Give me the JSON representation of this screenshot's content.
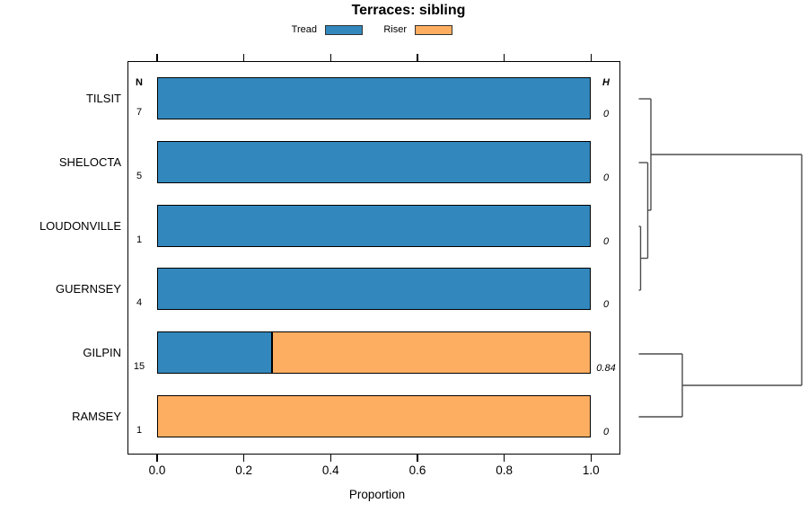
{
  "chart_data": {
    "type": "bar",
    "orientation": "horizontal",
    "stacked": true,
    "title": "Terraces: sibling",
    "xlabel": "Proportion",
    "xlim": [
      0,
      1.04
    ],
    "xticks": [
      0.0,
      0.2,
      0.4,
      0.6,
      0.8,
      1.0
    ],
    "xtick_labels": [
      "0.0",
      "0.2",
      "0.4",
      "0.6",
      "0.8",
      "1.0"
    ],
    "grid": false,
    "legend_position": "top-center",
    "categories": [
      "TILSIT",
      "SHELOCTA",
      "LOUDONVILLE",
      "GUERNSEY",
      "GILPIN",
      "RAMSEY"
    ],
    "series": [
      {
        "name": "Tread",
        "color": "#3288BD",
        "values": [
          1,
          1,
          1,
          1,
          0.267,
          0
        ]
      },
      {
        "name": "Riser",
        "color": "#FDAE61",
        "values": [
          0,
          0,
          0,
          0,
          0.733,
          1
        ]
      }
    ],
    "n_column": {
      "header": "N",
      "values": [
        "7",
        "5",
        "1",
        "4",
        "15",
        "1"
      ]
    },
    "h_column": {
      "header": "H",
      "values": [
        "0",
        "0",
        "0",
        "0",
        "0.84",
        "0"
      ]
    },
    "dendrogram": {
      "note": "row cluster tree drawn to the right of the panel, pixel segments x1,y1,x2,y2",
      "segments": [
        [
          711.5,
          110,
          725,
          110
        ],
        [
          711.5,
          181,
          721.5,
          181
        ],
        [
          711.5,
          252,
          713.5,
          252
        ],
        [
          711.5,
          323,
          713.5,
          323
        ],
        [
          711.5,
          394,
          760,
          394
        ],
        [
          711.5,
          464,
          760,
          464
        ],
        [
          713.5,
          252,
          713.5,
          323
        ],
        [
          713.5,
          287.5,
          721.5,
          287.5
        ],
        [
          721.5,
          181,
          721.5,
          287.5
        ],
        [
          721.5,
          234,
          725,
          234
        ],
        [
          725,
          110,
          725,
          234
        ],
        [
          725,
          172,
          893,
          172
        ],
        [
          760,
          394,
          760,
          464
        ],
        [
          760,
          429,
          893,
          429
        ],
        [
          893,
          172,
          893,
          429
        ]
      ]
    }
  },
  "colors": {
    "bar_border": "#000000",
    "box_border": "#000000",
    "dendro_line": "#4d4d4d",
    "tick": "#000000"
  }
}
